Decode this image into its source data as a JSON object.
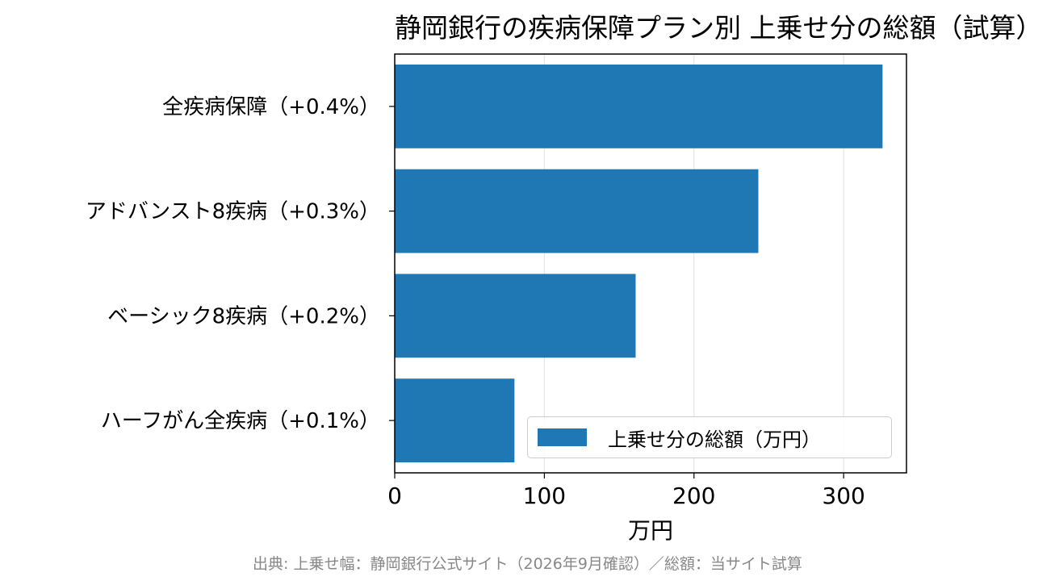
{
  "chart_data": {
    "type": "bar",
    "orientation": "horizontal",
    "title": "静岡銀行の疾病保障プラン別 上乗せ分の総額（試算）",
    "categories": [
      "全疾病保障（+0.4%）",
      "アドバンスト8疾病（+0.3%）",
      "ベーシック8疾病（+0.2%）",
      "ハーフがん全疾病（+0.1%）"
    ],
    "series": [
      {
        "name": "上乗せ分の総額（万円）",
        "values": [
          326,
          243,
          161,
          80
        ],
        "color": "#1f77b4"
      }
    ],
    "xlabel": "万円",
    "ylabel": "",
    "xlim": [
      0,
      342
    ],
    "xticks": [
      0,
      100,
      200,
      300
    ],
    "grid": "x",
    "legend_position": "lower-right"
  },
  "source_note": "出典: 上乗せ幅：静岡銀行公式サイト（2026年9月確認）／総額：当サイト試算"
}
